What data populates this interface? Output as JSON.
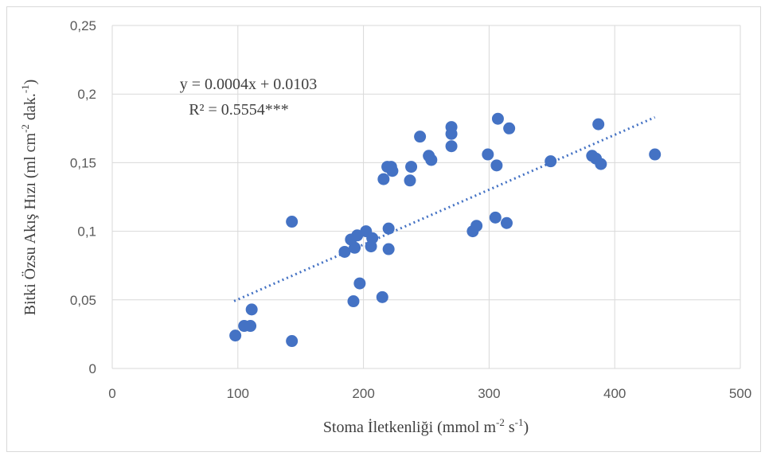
{
  "chart_data": {
    "type": "scatter",
    "xlabel_parts": [
      "Stoma İletkenliği (mmol m",
      "-2",
      " s",
      "-1",
      ")"
    ],
    "ylabel_parts": [
      "Bitki Özsu Akış Hızı (ml cm",
      "-2",
      " dak.",
      "-1",
      ")"
    ],
    "xlim": [
      0,
      500
    ],
    "ylim": [
      0,
      0.25
    ],
    "x_ticks": [
      "0",
      "100",
      "200",
      "300",
      "400",
      "500"
    ],
    "y_ticks": [
      "0",
      "0,05",
      "0,1",
      "0,15",
      "0,2",
      "0,25"
    ],
    "grid": true,
    "series": [
      {
        "color": "#4472c4",
        "points": [
          [
            98,
            0.024
          ],
          [
            105,
            0.031
          ],
          [
            110,
            0.031
          ],
          [
            111,
            0.043
          ],
          [
            143,
            0.107
          ],
          [
            143,
            0.02
          ],
          [
            185,
            0.085
          ],
          [
            190,
            0.094
          ],
          [
            193,
            0.088
          ],
          [
            195,
            0.097
          ],
          [
            192,
            0.049
          ],
          [
            197,
            0.062
          ],
          [
            202,
            0.1
          ],
          [
            206,
            0.089
          ],
          [
            207,
            0.095
          ],
          [
            215,
            0.052
          ],
          [
            216,
            0.138
          ],
          [
            219,
            0.147
          ],
          [
            220,
            0.102
          ],
          [
            220,
            0.087
          ],
          [
            222,
            0.147
          ],
          [
            223,
            0.144
          ],
          [
            237,
            0.137
          ],
          [
            238,
            0.147
          ],
          [
            245,
            0.169
          ],
          [
            252,
            0.155
          ],
          [
            254,
            0.152
          ],
          [
            270,
            0.176
          ],
          [
            270,
            0.171
          ],
          [
            270,
            0.162
          ],
          [
            287,
            0.1
          ],
          [
            290,
            0.104
          ],
          [
            299,
            0.156
          ],
          [
            305,
            0.11
          ],
          [
            306,
            0.148
          ],
          [
            307,
            0.182
          ],
          [
            314,
            0.106
          ],
          [
            316,
            0.175
          ],
          [
            349,
            0.151
          ],
          [
            382,
            0.155
          ],
          [
            385,
            0.153
          ],
          [
            387,
            0.178
          ],
          [
            389,
            0.149
          ],
          [
            432,
            0.156
          ]
        ]
      }
    ],
    "trendline": {
      "slope": 0.0004,
      "intercept": 0.0103,
      "x_start": 97,
      "x_end": 432
    },
    "annotation": {
      "equation": "y = 0.0004x + 0.0103",
      "r2": "R² = 0.5554***"
    }
  }
}
